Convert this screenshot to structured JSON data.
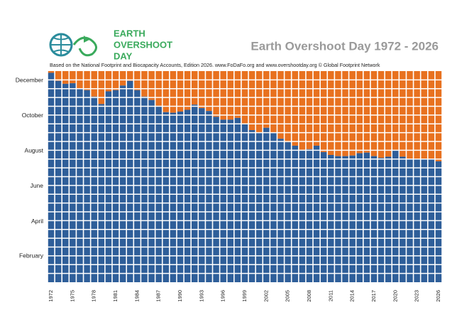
{
  "chart_data": {
    "type": "bar",
    "title": "Earth Overshoot Day  1972 - 2026",
    "subtitle": "Based on the National Footprint and Biocapacity Accounts, Edition 2026.  www.FoDaFo.org and www.overshootday.org   © Global Footprint Network",
    "logo_text": [
      "EARTH",
      "OVERSHOOT",
      "DAY"
    ],
    "x": [
      1972,
      1973,
      1974,
      1975,
      1976,
      1977,
      1978,
      1979,
      1980,
      1981,
      1982,
      1983,
      1984,
      1985,
      1986,
      1987,
      1988,
      1989,
      1990,
      1991,
      1992,
      1993,
      1994,
      1995,
      1996,
      1997,
      1998,
      1999,
      2000,
      2001,
      2002,
      2003,
      2004,
      2005,
      2006,
      2007,
      2008,
      2009,
      2010,
      2011,
      2012,
      2013,
      2014,
      2015,
      2016,
      2017,
      2018,
      2019,
      2020,
      2021,
      2022,
      2023,
      2024,
      2025,
      2026
    ],
    "values": [
      362,
      348,
      343,
      344,
      334,
      332,
      321,
      308,
      330,
      332,
      340,
      348,
      332,
      321,
      315,
      305,
      294,
      293,
      295,
      298,
      307,
      301,
      296,
      286,
      281,
      281,
      284,
      274,
      263,
      259,
      267,
      258,
      248,
      242,
      236,
      229,
      230,
      236,
      225,
      220,
      218,
      218,
      219,
      223,
      224,
      218,
      215,
      217,
      229,
      217,
      213,
      212,
      212,
      212,
      209
    ],
    "color": "#2e5e99",
    "remainder_color": "#e8711f",
    "xlim": [
      1971.5,
      2026.5
    ],
    "xticks": [
      1972,
      1975,
      1978,
      1981,
      1984,
      1987,
      1990,
      1993,
      1996,
      1999,
      2002,
      2005,
      2008,
      2011,
      2014,
      2017,
      2020,
      2023,
      2026
    ],
    "ylim": [
      0,
      365
    ],
    "yticks": [
      {
        "value": 45,
        "label": "February"
      },
      {
        "value": 105,
        "label": "April"
      },
      {
        "value": 166,
        "label": "June"
      },
      {
        "value": 227,
        "label": "August"
      },
      {
        "value": 288,
        "label": "October"
      },
      {
        "value": 349,
        "label": "December"
      }
    ]
  }
}
